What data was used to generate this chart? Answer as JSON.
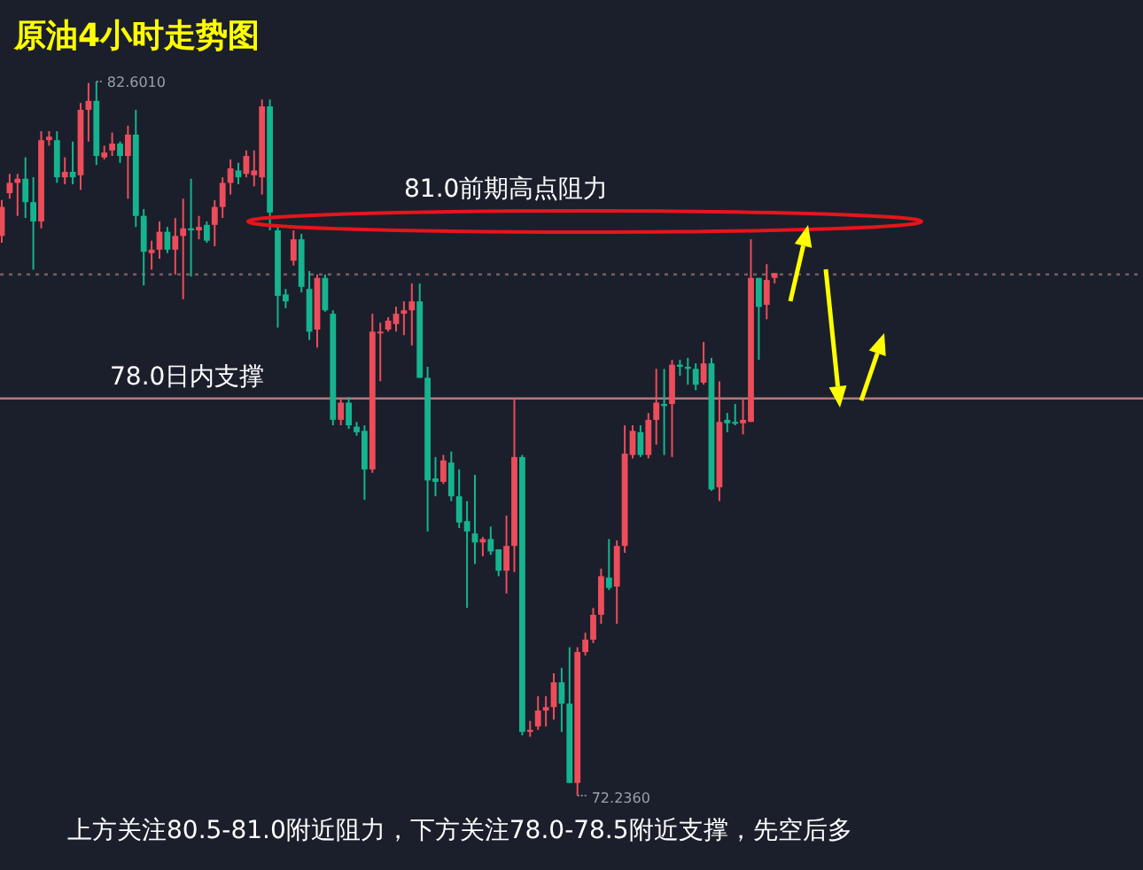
{
  "chart_data": {
    "type": "candlestick",
    "title": "原油4小时走势图",
    "categories": [
      null,
      null,
      null,
      null,
      null,
      null,
      null,
      null,
      null,
      null,
      null,
      null,
      null,
      null,
      null,
      null,
      null,
      null,
      null,
      null,
      null,
      null,
      null,
      null,
      null,
      null,
      null,
      null,
      null,
      null,
      null,
      null,
      null,
      null,
      null,
      null,
      null,
      null,
      null,
      null,
      null,
      null,
      null,
      null,
      null,
      null,
      null,
      null,
      null,
      null,
      null,
      null,
      null,
      null,
      null,
      null,
      null,
      null,
      null,
      null,
      null,
      null,
      null,
      null,
      null,
      null,
      null,
      null,
      null,
      null,
      null,
      null,
      null,
      null,
      null,
      null,
      null,
      null,
      null,
      null,
      null,
      null,
      null,
      null,
      null,
      null,
      null,
      null,
      null,
      null,
      null,
      null,
      null,
      null,
      null,
      null,
      null,
      null,
      null
    ],
    "ohlc": [
      [
        80.36,
        80.88,
        80.26,
        80.78
      ],
      [
        80.98,
        81.26,
        80.9,
        81.13
      ],
      [
        81.13,
        81.26,
        80.65,
        81.19
      ],
      [
        81.19,
        81.5,
        80.62,
        80.85
      ],
      [
        80.85,
        81.21,
        79.87,
        80.57
      ],
      [
        80.57,
        81.88,
        80.47,
        81.75
      ],
      [
        81.75,
        81.88,
        81.67,
        81.8
      ],
      [
        81.75,
        81.88,
        81.13,
        81.21
      ],
      [
        81.21,
        81.5,
        81.11,
        81.29
      ],
      [
        81.29,
        81.73,
        81.11,
        81.21
      ],
      [
        81.24,
        82.29,
        81.03,
        82.19
      ],
      [
        82.19,
        82.58,
        81.73,
        82.32
      ],
      [
        82.32,
        82.601,
        81.39,
        81.52
      ],
      [
        81.5,
        81.67,
        81.47,
        81.57
      ],
      [
        81.6,
        81.86,
        81.52,
        81.7
      ],
      [
        81.7,
        81.73,
        81.42,
        81.52
      ],
      [
        81.52,
        81.96,
        80.9,
        81.83
      ],
      [
        81.83,
        82.19,
        80.49,
        80.65
      ],
      [
        80.65,
        80.75,
        79.64,
        80.13
      ],
      [
        80.11,
        80.29,
        79.87,
        80.16
      ],
      [
        80.16,
        80.57,
        80.03,
        80.42
      ],
      [
        80.42,
        80.49,
        80.11,
        80.16
      ],
      [
        80.16,
        80.62,
        79.8,
        80.36
      ],
      [
        80.36,
        80.9,
        79.44,
        80.47
      ],
      [
        80.47,
        81.19,
        79.77,
        80.44
      ],
      [
        80.44,
        80.65,
        80.31,
        80.49
      ],
      [
        80.52,
        80.57,
        80.26,
        80.29
      ],
      [
        80.52,
        80.88,
        80.21,
        80.78
      ],
      [
        80.78,
        81.21,
        80.62,
        81.13
      ],
      [
        81.13,
        81.47,
        80.96,
        81.34
      ],
      [
        81.31,
        81.42,
        81.11,
        81.21
      ],
      [
        81.26,
        81.6,
        81.21,
        81.52
      ],
      [
        81.24,
        81.6,
        81.08,
        81.31
      ],
      [
        81.21,
        82.34,
        80.96,
        82.24
      ],
      [
        82.24,
        82.34,
        80.44,
        80.7
      ],
      [
        80.44,
        80.52,
        79.03,
        79.49
      ],
      [
        79.51,
        79.59,
        79.31,
        79.41
      ],
      [
        80.0,
        80.44,
        79.93,
        80.31
      ],
      [
        80.31,
        80.39,
        79.54,
        79.62
      ],
      [
        79.59,
        79.85,
        78.85,
        78.97
      ],
      [
        79.0,
        79.8,
        78.74,
        79.75
      ],
      [
        79.75,
        79.8,
        79.26,
        79.28
      ],
      [
        79.23,
        79.28,
        77.61,
        77.69
      ],
      [
        77.69,
        78.0,
        77.61,
        77.94
      ],
      [
        77.94,
        78.02,
        77.56,
        77.61
      ],
      [
        77.59,
        77.66,
        77.46,
        77.51
      ],
      [
        77.53,
        77.61,
        76.53,
        76.97
      ],
      [
        76.97,
        79.23,
        76.92,
        78.97
      ],
      [
        78.95,
        79.1,
        78.25,
        78.97
      ],
      [
        79.0,
        79.18,
        78.97,
        79.13
      ],
      [
        79.08,
        79.33,
        78.97,
        79.23
      ],
      [
        79.23,
        79.41,
        78.92,
        79.28
      ],
      [
        79.28,
        79.67,
        78.77,
        79.41
      ],
      [
        79.41,
        79.67,
        78.3,
        78.3
      ],
      [
        78.3,
        78.46,
        76.07,
        76.81
      ],
      [
        76.84,
        77.15,
        76.58,
        76.79
      ],
      [
        76.79,
        77.18,
        76.76,
        77.1
      ],
      [
        77.07,
        77.23,
        76.51,
        76.58
      ],
      [
        76.58,
        76.97,
        76.12,
        76.2
      ],
      [
        76.22,
        76.51,
        74.96,
        76.07
      ],
      [
        76.04,
        76.89,
        75.6,
        75.91
      ],
      [
        75.91,
        75.99,
        75.71,
        75.96
      ],
      [
        75.96,
        76.14,
        75.73,
        75.78
      ],
      [
        75.81,
        75.81,
        75.42,
        75.5
      ],
      [
        75.5,
        76.3,
        75.17,
        75.86
      ],
      [
        75.86,
        78.0,
        75.48,
        77.15
      ],
      [
        77.15,
        77.18,
        73.11,
        73.16
      ],
      [
        73.16,
        73.32,
        73.09,
        73.19
      ],
      [
        73.24,
        73.68,
        73.19,
        73.47
      ],
      [
        73.47,
        73.68,
        73.24,
        73.52
      ],
      [
        73.52,
        74.01,
        73.34,
        73.88
      ],
      [
        73.88,
        74.09,
        73.16,
        73.57
      ],
      [
        73.57,
        74.39,
        72.42,
        72.42
      ],
      [
        72.42,
        74.39,
        72.236,
        74.32
      ],
      [
        74.32,
        74.6,
        74.27,
        74.5
      ],
      [
        74.5,
        74.96,
        74.45,
        74.86
      ],
      [
        74.86,
        75.53,
        74.73,
        75.42
      ],
      [
        75.4,
        75.96,
        75.22,
        75.25
      ],
      [
        75.27,
        75.94,
        74.73,
        75.86
      ],
      [
        75.86,
        77.61,
        75.76,
        77.2
      ],
      [
        77.18,
        77.61,
        77.13,
        77.53
      ],
      [
        77.51,
        77.61,
        77.15,
        77.18
      ],
      [
        77.18,
        77.79,
        77.13,
        77.69
      ],
      [
        77.69,
        78.43,
        77.33,
        77.94
      ],
      [
        77.92,
        78.43,
        77.18,
        77.89
      ],
      [
        77.92,
        78.56,
        77.15,
        78.49
      ],
      [
        78.49,
        78.56,
        78.33,
        78.46
      ],
      [
        78.46,
        78.59,
        78.2,
        78.43
      ],
      [
        78.43,
        78.51,
        78.12,
        78.2
      ],
      [
        78.23,
        78.82,
        78.2,
        78.51
      ],
      [
        78.51,
        78.59,
        76.66,
        76.68
      ],
      [
        76.71,
        78.25,
        76.51,
        77.66
      ],
      [
        77.69,
        77.79,
        77.51,
        77.64
      ],
      [
        77.66,
        77.92,
        77.61,
        77.64
      ],
      [
        77.64,
        78.0,
        77.48,
        77.69
      ],
      [
        77.66,
        80.31,
        77.66,
        79.75
      ],
      [
        79.75,
        79.75,
        78.56,
        79.33
      ],
      [
        79.36,
        79.95,
        79.15,
        79.72
      ],
      [
        79.75,
        79.82,
        79.67,
        79.82
      ]
    ],
    "ref_lines": [
      {
        "axis": "y",
        "value": 78.0,
        "label": "78.0日内支撑",
        "color": "#b07a7e"
      },
      {
        "axis": "y",
        "value": 79.8,
        "line_style": "dotted",
        "color": "#7a5a66"
      }
    ],
    "annotations": [
      "82.6010",
      "72.2360",
      "81.0前期高点阻力",
      "上方关注80.5-81.0附近阻力，下方关注78.0-78.5附近支撑，先空后多"
    ]
  }
}
